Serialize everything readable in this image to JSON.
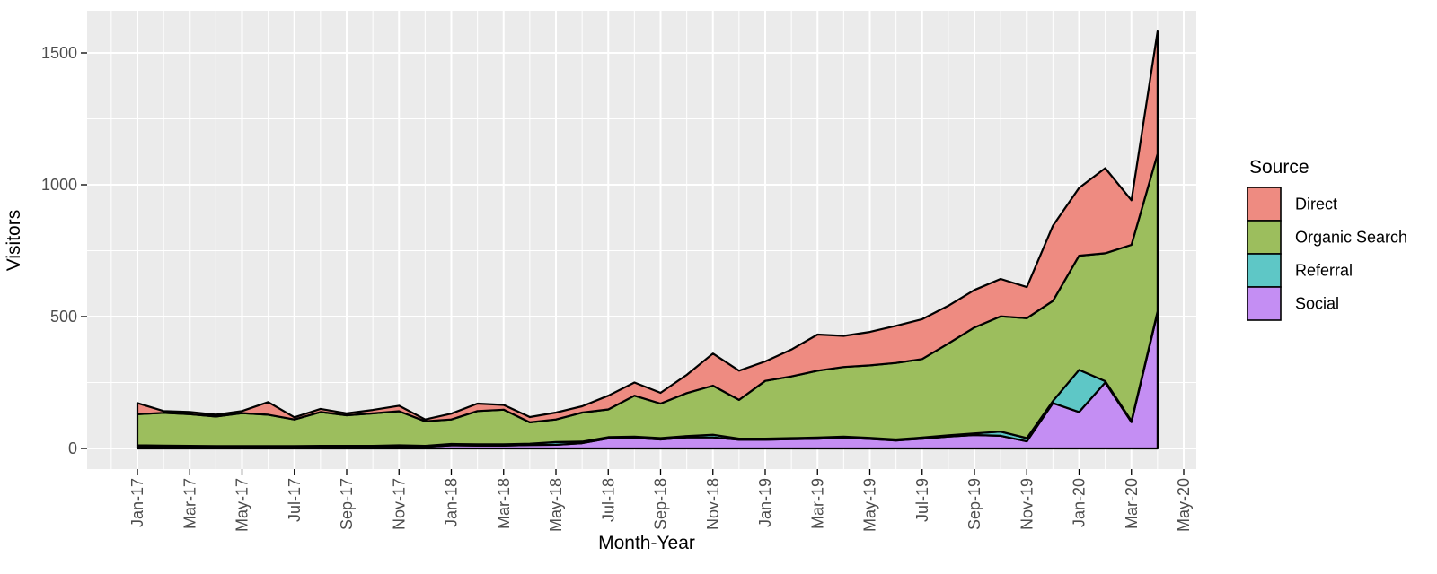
{
  "chart_data": {
    "type": "area",
    "stacked": true,
    "xlabel": "Month-Year",
    "ylabel": "Visitors",
    "legend_title": "Source",
    "legend_position": "right",
    "grid": true,
    "ylim": [
      0,
      1660
    ],
    "y_major_ticks": [
      0,
      500,
      1000,
      1500
    ],
    "y_tick_labels": [
      "0",
      "500",
      "1000",
      "1500"
    ],
    "y_minor_ticks": [
      250,
      750,
      1250
    ],
    "x_tick_labels": [
      "Jan-17",
      "Mar-17",
      "May-17",
      "Jul-17",
      "Sep-17",
      "Nov-17",
      "Jan-18",
      "Mar-18",
      "May-18",
      "Jul-18",
      "Sep-18",
      "Nov-18",
      "Jan-19",
      "Mar-19",
      "May-19",
      "Jul-19",
      "Sep-19",
      "Nov-19",
      "Jan-20",
      "Mar-20",
      "May-20"
    ],
    "x": [
      "Jan-17",
      "Feb-17",
      "Mar-17",
      "Apr-17",
      "May-17",
      "Jun-17",
      "Jul-17",
      "Aug-17",
      "Sep-17",
      "Oct-17",
      "Nov-17",
      "Dec-17",
      "Jan-18",
      "Feb-18",
      "Mar-18",
      "Apr-18",
      "May-18",
      "Jun-18",
      "Jul-18",
      "Aug-18",
      "Sep-18",
      "Oct-18",
      "Nov-18",
      "Dec-18",
      "Jan-19",
      "Feb-19",
      "Mar-19",
      "Apr-19",
      "May-19",
      "Jun-19",
      "Jul-19",
      "Aug-19",
      "Sep-19",
      "Oct-19",
      "Nov-19",
      "Dec-19",
      "Jan-20",
      "Feb-20",
      "Mar-20",
      "Apr-20"
    ],
    "stack_order_bottom_to_top": [
      "Social",
      "Referral",
      "Organic Search",
      "Direct"
    ],
    "series": [
      {
        "name": "Direct",
        "color": "#EE8B81",
        "values": [
          42,
          7,
          8,
          7,
          8,
          48,
          8,
          12,
          7,
          13,
          21,
          7,
          22,
          28,
          18,
          20,
          26,
          24,
          52,
          50,
          41,
          69,
          122,
          111,
          74,
          102,
          137,
          118,
          127,
          141,
          151,
          143,
          142,
          142,
          118,
          285,
          257,
          323,
          169,
          465
        ]
      },
      {
        "name": "Organic Search",
        "color": "#9CBE5D",
        "values": [
          118,
          124,
          120,
          112,
          125,
          119,
          101,
          128,
          116,
          123,
          129,
          93,
          93,
          126,
          131,
          81,
          86,
          110,
          105,
          155,
          131,
          163,
          186,
          147,
          219,
          234,
          254,
          264,
          275,
          290,
          298,
          348,
          402,
          437,
          455,
          380,
          433,
          485,
          668,
          597
        ]
      },
      {
        "name": "Referral",
        "color": "#5EC7C6",
        "values": [
          6,
          5,
          4,
          4,
          4,
          4,
          4,
          4,
          4,
          4,
          5,
          4,
          5,
          5,
          5,
          5,
          10,
          6,
          5,
          5,
          5,
          5,
          10,
          4,
          4,
          4,
          4,
          4,
          4,
          4,
          4,
          5,
          6,
          16,
          12,
          8,
          160,
          5,
          4,
          4
        ]
      },
      {
        "name": "Social",
        "color": "#C48EF3",
        "values": [
          6,
          6,
          6,
          5,
          5,
          5,
          5,
          6,
          6,
          6,
          7,
          6,
          12,
          11,
          11,
          13,
          14,
          20,
          38,
          40,
          34,
          42,
          42,
          33,
          33,
          35,
          37,
          41,
          36,
          30,
          37,
          45,
          51,
          48,
          27,
          172,
          138,
          250,
          100,
          516
        ]
      }
    ],
    "colors": {
      "panel_background": "#EBEBEB",
      "gridline": "#FFFFFF",
      "outline": "#000000",
      "tick_text": "#4D4D4D",
      "title_text": "#000000"
    }
  }
}
